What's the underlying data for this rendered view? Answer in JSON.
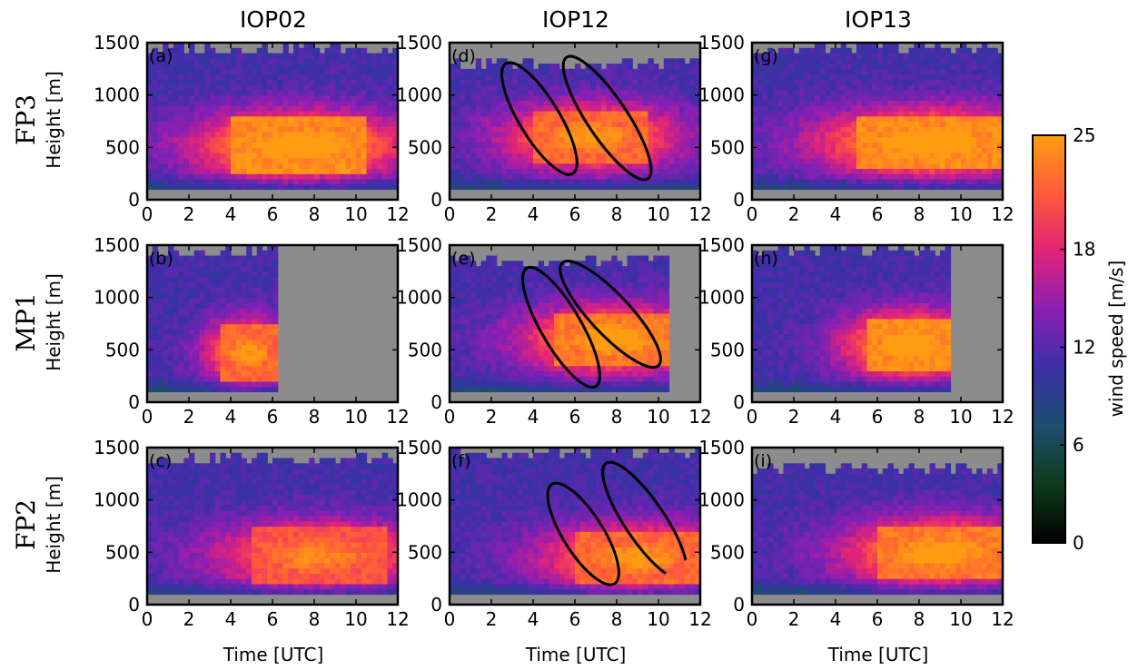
{
  "chart_data": {
    "type": "heatmap",
    "column_titles": [
      "IOP02",
      "IOP12",
      "IOP13"
    ],
    "row_labels": [
      "FP3",
      "MP1",
      "FP2"
    ],
    "xlabel": "Time [UTC]",
    "ylabel": "Height [m]",
    "xlim": [
      0,
      12
    ],
    "ylim": [
      0,
      1500
    ],
    "xticks": [
      "0",
      "2",
      "4",
      "6",
      "8",
      "10",
      "12"
    ],
    "yticks": [
      "0",
      "500",
      "1000",
      "1500"
    ],
    "colorbar": {
      "label": "wind speed [m/s]",
      "range": [
        0,
        25
      ],
      "ticks": [
        "0",
        "6",
        "12",
        "18",
        "25"
      ],
      "colors": [
        "#000000",
        "#0e3b1a",
        "#1b4f6e",
        "#3b2fa8",
        "#8a1fb3",
        "#e0237a",
        "#ff5a3a",
        "#ff9d12"
      ],
      "missing_color": "#8c8c8c"
    },
    "panels": [
      {
        "id": "a",
        "label": "(a)",
        "row": 0,
        "col": 0,
        "data_time_range": [
          0,
          12
        ],
        "data_height_range": [
          100,
          1450
        ],
        "jet_core_speed": 25,
        "jet_core_height": 520,
        "jet_core_time_range": [
          4,
          10.5
        ],
        "ellipses": []
      },
      {
        "id": "b",
        "label": "(b)",
        "row": 1,
        "col": 0,
        "data_time_range": [
          0,
          6.2
        ],
        "data_height_range": [
          100,
          1450
        ],
        "jet_core_speed": 23,
        "jet_core_height": 480,
        "jet_core_time_range": [
          3.5,
          6.2
        ],
        "ellipses": []
      },
      {
        "id": "c",
        "label": "(c)",
        "row": 2,
        "col": 0,
        "data_time_range": [
          0,
          12
        ],
        "data_height_range": [
          100,
          1400
        ],
        "jet_core_speed": 22,
        "jet_core_height": 470,
        "jet_core_time_range": [
          5,
          11.5
        ],
        "ellipses": []
      },
      {
        "id": "d",
        "label": "(d)",
        "row": 0,
        "col": 1,
        "data_time_range": [
          0,
          12
        ],
        "data_height_range": [
          100,
          1300
        ],
        "jet_core_speed": 23,
        "jet_core_height": 600,
        "jet_core_time_range": [
          4,
          9.5
        ],
        "ellipses": [
          {
            "t1": 2.7,
            "h1": 1300,
            "t2": 5.9,
            "h2": 250
          },
          {
            "t1": 5.6,
            "h1": 1360,
            "t2": 9.5,
            "h2": 200
          }
        ]
      },
      {
        "id": "e",
        "label": "(e)",
        "row": 1,
        "col": 1,
        "data_time_range": [
          0,
          10.5
        ],
        "data_height_range": [
          100,
          1350
        ],
        "jet_core_speed": 24,
        "jet_core_height": 600,
        "jet_core_time_range": [
          5,
          10.5
        ],
        "ellipses": [
          {
            "t1": 3.7,
            "h1": 1280,
            "t2": 7.0,
            "h2": 150
          },
          {
            "t1": 5.4,
            "h1": 1330,
            "t2": 10.0,
            "h2": 350
          }
        ]
      },
      {
        "id": "f",
        "label": "(f)",
        "row": 2,
        "col": 1,
        "data_time_range": [
          0,
          12
        ],
        "data_height_range": [
          100,
          1450
        ],
        "jet_core_speed": 23,
        "jet_core_height": 450,
        "jet_core_time_range": [
          6,
          12
        ],
        "ellipses": [
          {
            "t1": 4.9,
            "h1": 1150,
            "t2": 7.9,
            "h2": 200
          },
          {
            "t1": 7.5,
            "h1": 1350,
            "t2": 11.2,
            "h2": 250
          }
        ]
      },
      {
        "id": "g",
        "label": "(g)",
        "row": 0,
        "col": 2,
        "data_time_range": [
          0,
          12
        ],
        "data_height_range": [
          100,
          1450
        ],
        "jet_core_speed": 25,
        "jet_core_height": 550,
        "jet_core_time_range": [
          5,
          12
        ],
        "ellipses": []
      },
      {
        "id": "h",
        "label": "(h)",
        "row": 1,
        "col": 2,
        "data_time_range": [
          0,
          9.5
        ],
        "data_height_range": [
          100,
          1450
        ],
        "jet_core_speed": 25,
        "jet_core_height": 550,
        "jet_core_time_range": [
          5.5,
          9.5
        ],
        "ellipses": []
      },
      {
        "id": "i",
        "label": "(i)",
        "row": 2,
        "col": 2,
        "data_time_range": [
          0,
          12
        ],
        "data_height_range": [
          100,
          1300
        ],
        "jet_core_speed": 24,
        "jet_core_height": 500,
        "jet_core_time_range": [
          6,
          12
        ],
        "ellipses": []
      }
    ]
  }
}
